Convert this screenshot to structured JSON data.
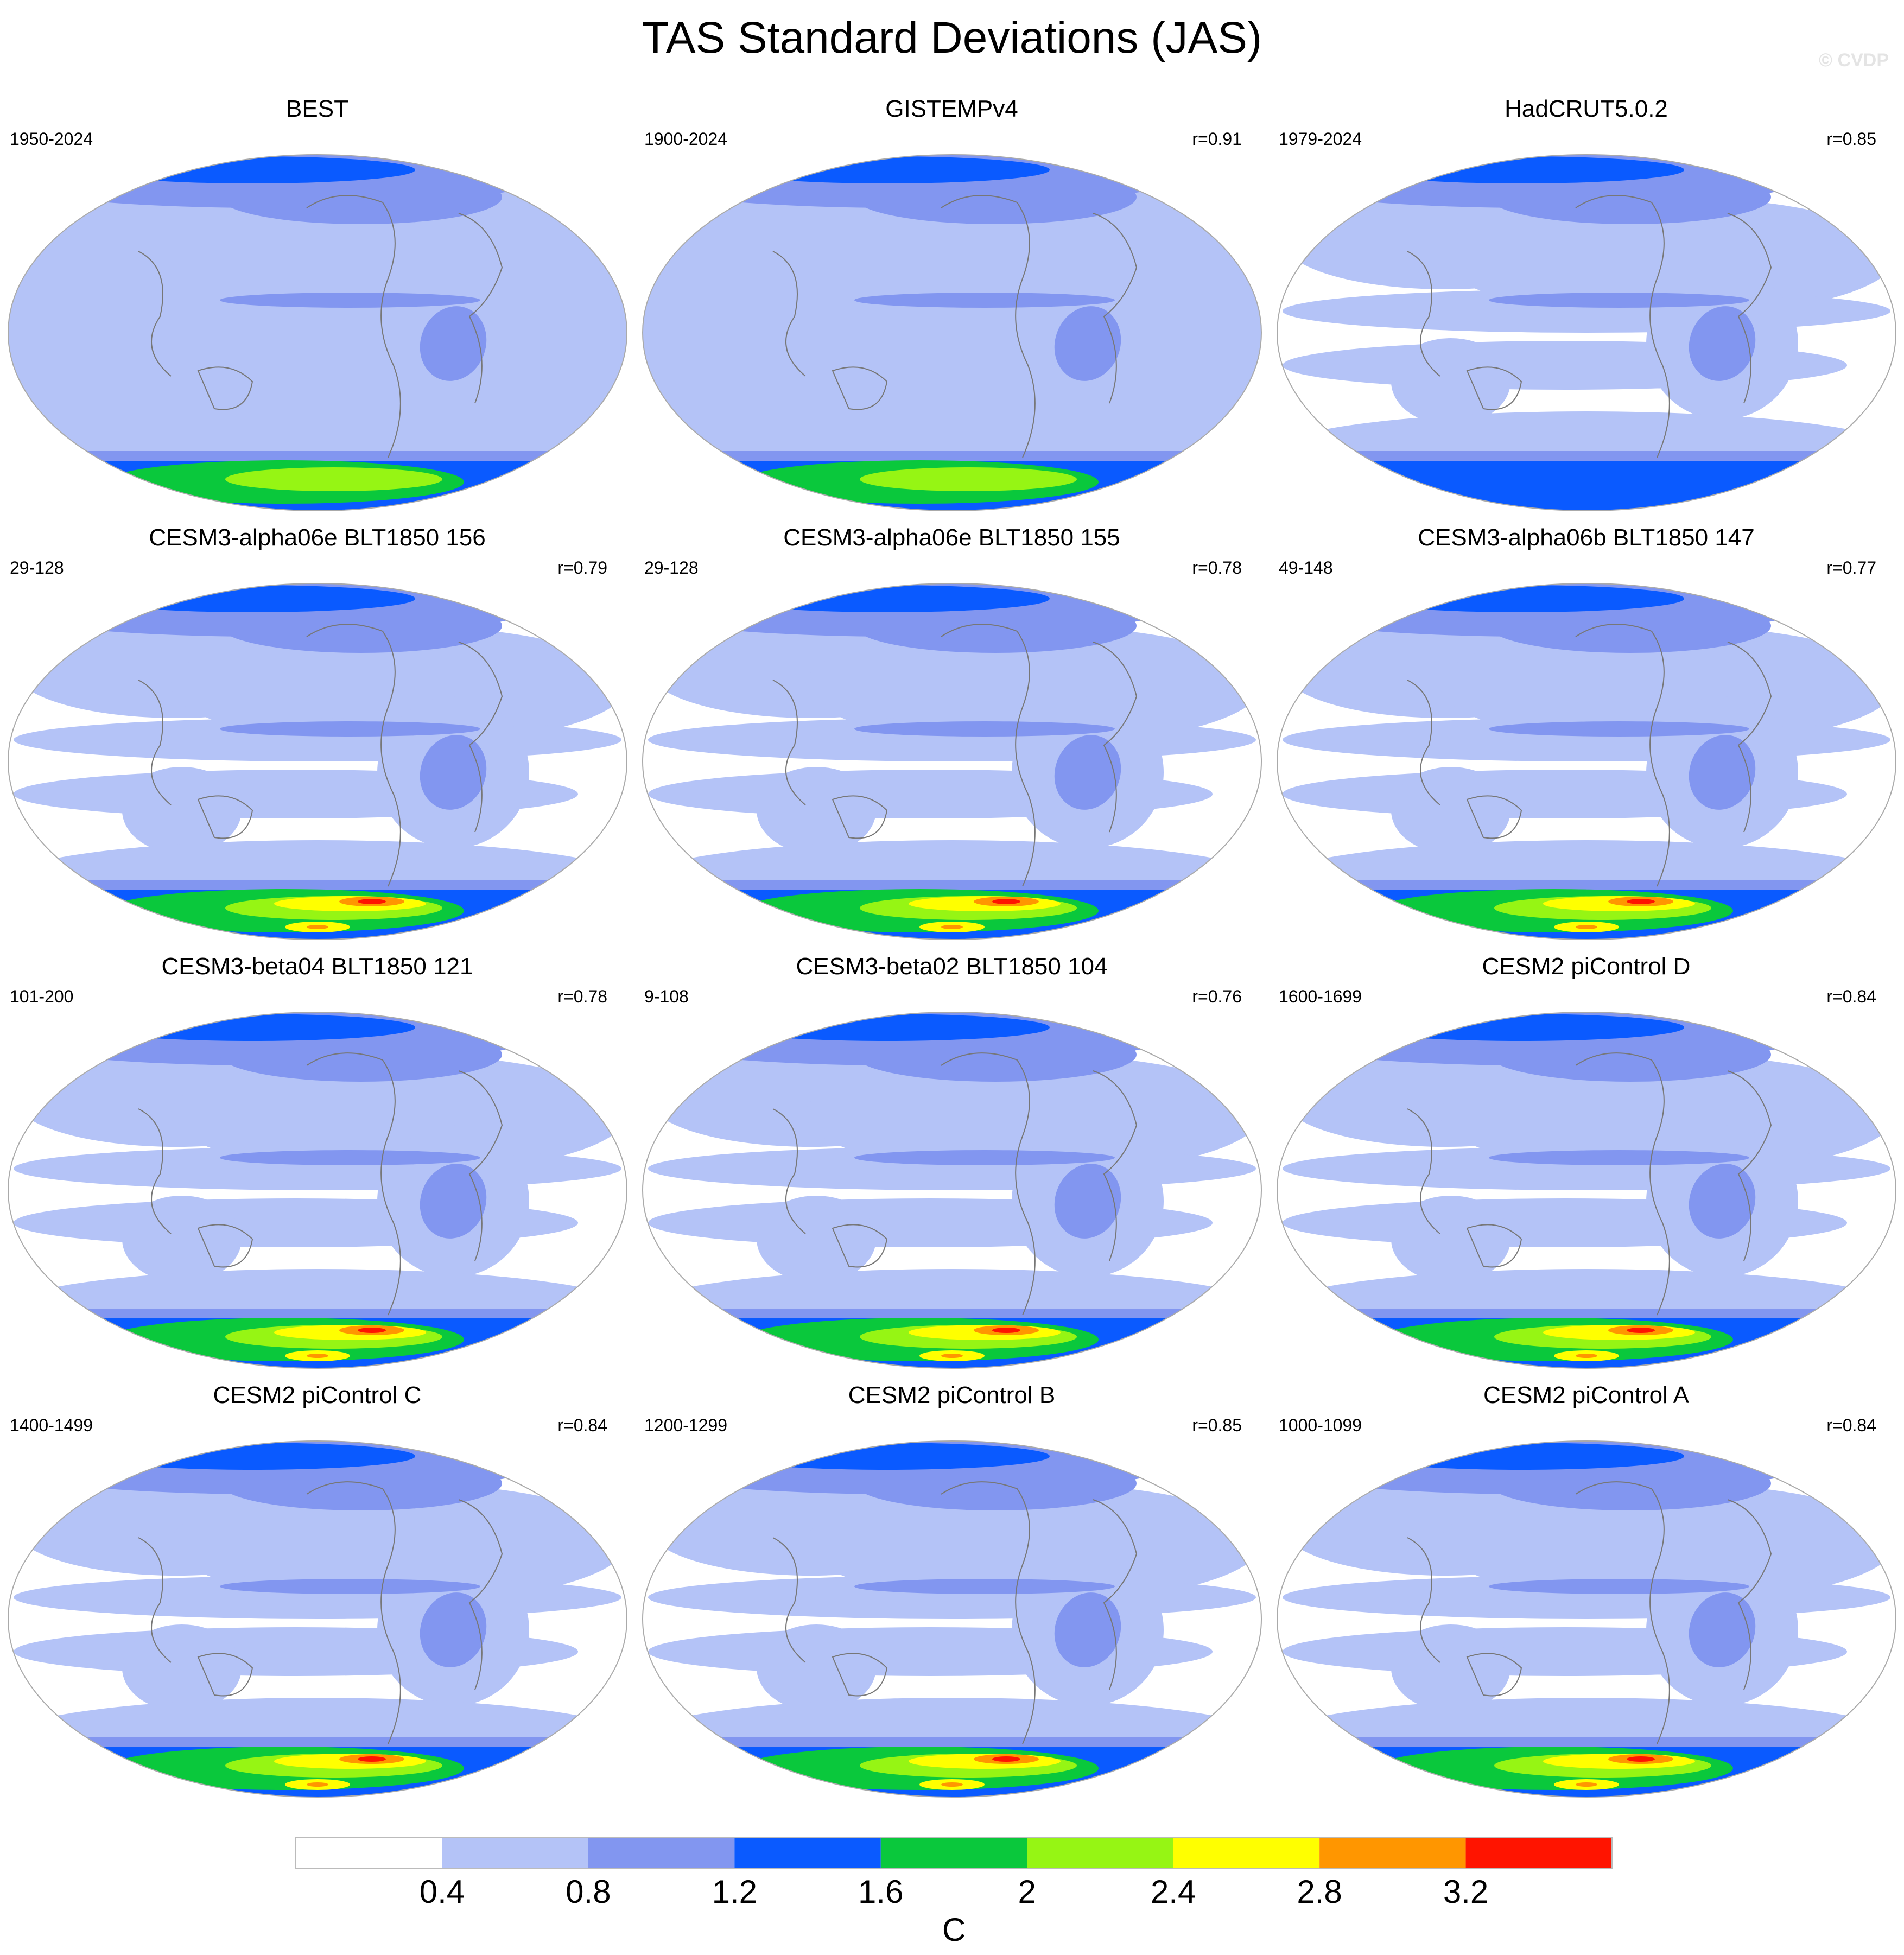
{
  "title": "TAS Standard Deviations (JAS)",
  "watermark": "© CVDP",
  "panels": [
    {
      "title": "BEST",
      "left_label": "1950-2024",
      "right_label": ""
    },
    {
      "title": "GISTEMPv4",
      "left_label": "1900-2024",
      "right_label": "r=0.91"
    },
    {
      "title": "HadCRUT5.0.2",
      "left_label": "1979-2024",
      "right_label": "r=0.85"
    },
    {
      "title": "CESM3-alpha06e BLT1850 156",
      "left_label": "29-128",
      "right_label": "r=0.79"
    },
    {
      "title": "CESM3-alpha06e BLT1850 155",
      "left_label": "29-128",
      "right_label": "r=0.78"
    },
    {
      "title": "CESM3-alpha06b BLT1850 147",
      "left_label": "49-148",
      "right_label": "r=0.77"
    },
    {
      "title": "CESM3-beta04 BLT1850 121",
      "left_label": "101-200",
      "right_label": "r=0.78"
    },
    {
      "title": "CESM3-beta02 BLT1850 104",
      "left_label": "9-108",
      "right_label": "r=0.76"
    },
    {
      "title": "CESM2 piControl D",
      "left_label": "1600-1699",
      "right_label": "r=0.84"
    },
    {
      "title": "CESM2 piControl C",
      "left_label": "1400-1499",
      "right_label": "r=0.84"
    },
    {
      "title": "CESM2 piControl B",
      "left_label": "1200-1299",
      "right_label": "r=0.85"
    },
    {
      "title": "CESM2 piControl A",
      "left_label": "1000-1099",
      "right_label": "r=0.84"
    }
  ],
  "colorbar": {
    "units": "C",
    "tick_labels": [
      "0.4",
      "0.8",
      "1.2",
      "1.6",
      "2",
      "2.4",
      "2.8",
      "3.2"
    ],
    "colors": [
      "#ffffff",
      "#b4c3f7",
      "#8296f0",
      "#0a5aff",
      "#0ac83c",
      "#96f514",
      "#ffff00",
      "#ff9600",
      "#ff1400"
    ]
  },
  "colors": {
    "c0": "#ffffff",
    "c1": "#b4c3f7",
    "c2": "#8296f0",
    "c3": "#0a5aff",
    "c4": "#0ac83c",
    "c5": "#96f514",
    "c6": "#ffff00",
    "c7": "#ff9600",
    "c8": "#ff1400",
    "coast": "#777777",
    "border": "#aaaaaa"
  }
}
